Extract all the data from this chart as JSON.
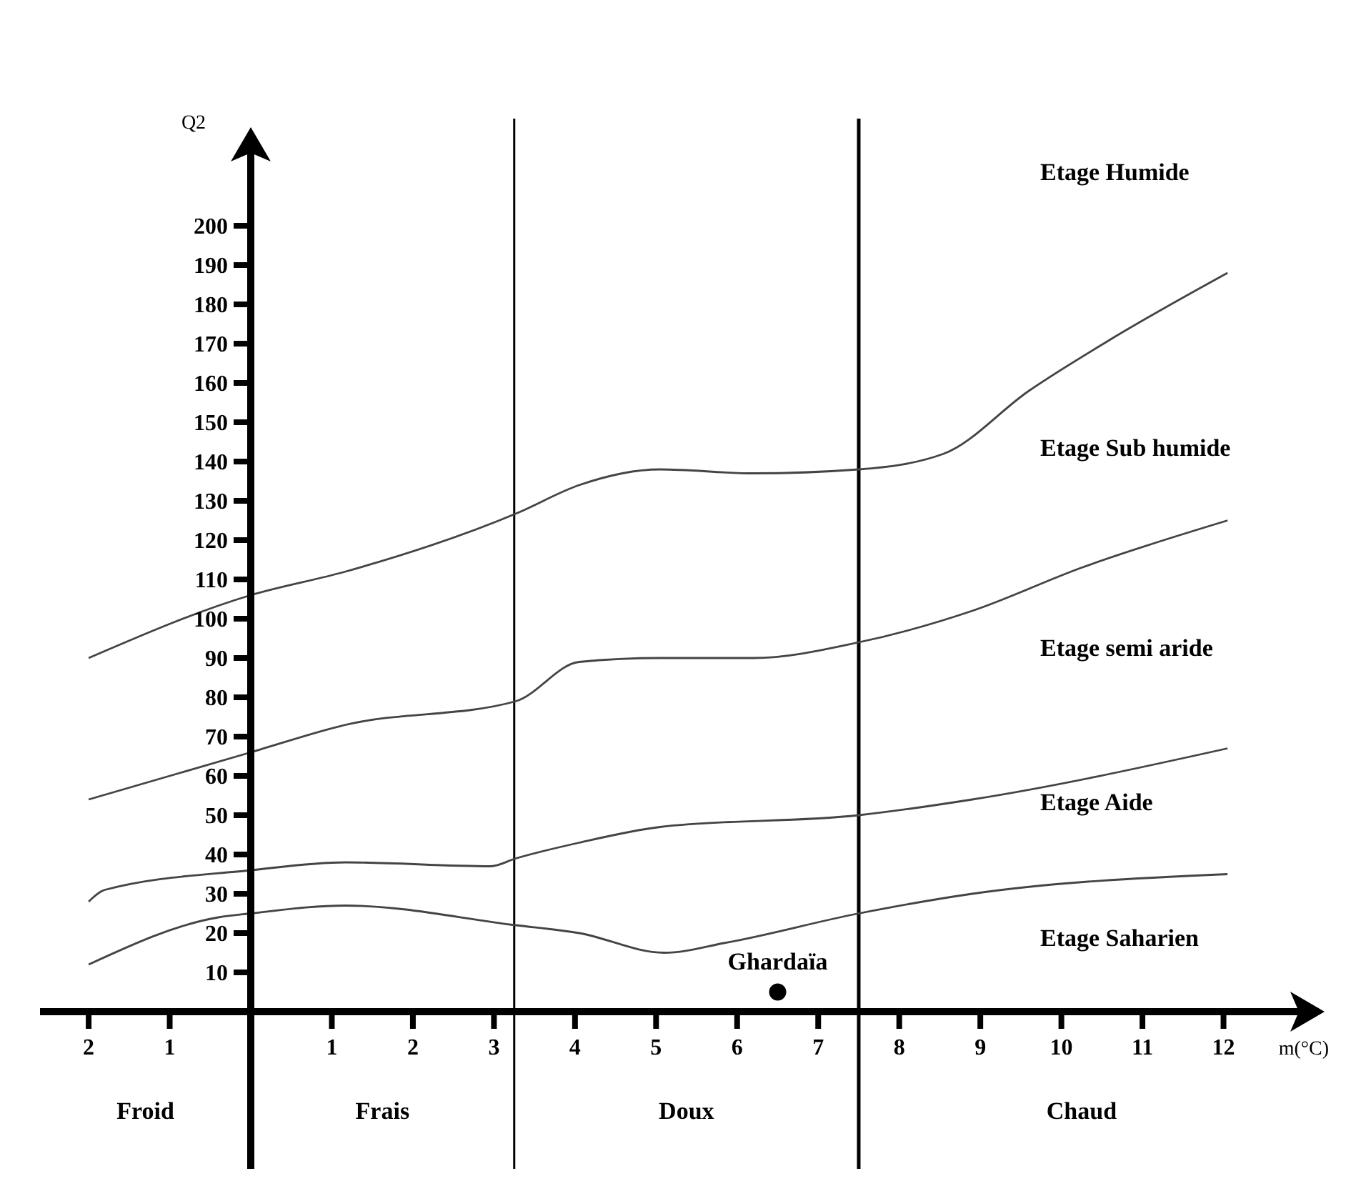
{
  "chart_data": {
    "type": "line",
    "xlabel": "m(°C)",
    "ylabel": "Q2",
    "xlim": [
      -2.6,
      13
    ],
    "ylim": [
      0,
      220
    ],
    "xticks": [
      {
        "value": -2,
        "label": "2"
      },
      {
        "value": -1,
        "label": "1"
      },
      1,
      2,
      3,
      4,
      5,
      6,
      7,
      8,
      9,
      10,
      11,
      12
    ],
    "yticks": [
      10,
      20,
      30,
      40,
      50,
      60,
      70,
      80,
      90,
      100,
      110,
      120,
      130,
      140,
      150,
      160,
      170,
      180,
      190,
      200
    ],
    "grid": false,
    "marker": "none",
    "line_style": "solid",
    "series": [
      {
        "color": "#444444",
        "x": [
          -2,
          0,
          1.17,
          3.3,
          4.05,
          5.05,
          6.2,
          7.5,
          8.55,
          9.6,
          10.6,
          12.05
        ],
        "values": [
          90,
          106,
          112,
          127,
          134,
          138,
          137,
          138,
          142,
          158,
          171,
          188
        ]
      },
      {
        "color": "#444444",
        "x": [
          -2,
          0,
          1.17,
          3.27,
          4.05,
          5.05,
          6.2,
          7.5,
          8.9,
          10.25,
          12.05
        ],
        "values": [
          54,
          66,
          73,
          79,
          89,
          90,
          90,
          94,
          102,
          113,
          125
        ]
      },
      {
        "color": "#444444",
        "x": [
          -2,
          -1.8,
          0,
          1.17,
          2.96,
          3.27,
          4.05,
          5.05,
          7.5,
          8.9,
          12.05
        ],
        "values": [
          28,
          31,
          36,
          38,
          37,
          39,
          43,
          47,
          50,
          54,
          67
        ]
      },
      {
        "color": "#444444",
        "x": [
          -2,
          -0.4,
          0,
          1.17,
          3.27,
          4.05,
          5.1,
          5.85,
          7.5,
          8.9,
          12.05
        ],
        "values": [
          12,
          24,
          25,
          27,
          22,
          20,
          15,
          17.5,
          25,
          30,
          35
        ]
      },
      {
        "type": "scatter",
        "name": "Ghardaïa",
        "color": "#000000",
        "marker": "circle",
        "x": [
          6.5
        ],
        "values": [
          5
        ]
      }
    ],
    "ref_lines": [
      {
        "axis": "x",
        "value": 3.25,
        "color": "#000000"
      },
      {
        "axis": "x",
        "value": 7.5,
        "color": "#000000"
      }
    ],
    "annotations": [
      "Etage Humide",
      "Etage Sub humide",
      "Etage semi aride",
      "Etage Aide",
      "Etage Saharien",
      "Froid",
      "Frais",
      "Doux",
      "Chaud"
    ]
  }
}
